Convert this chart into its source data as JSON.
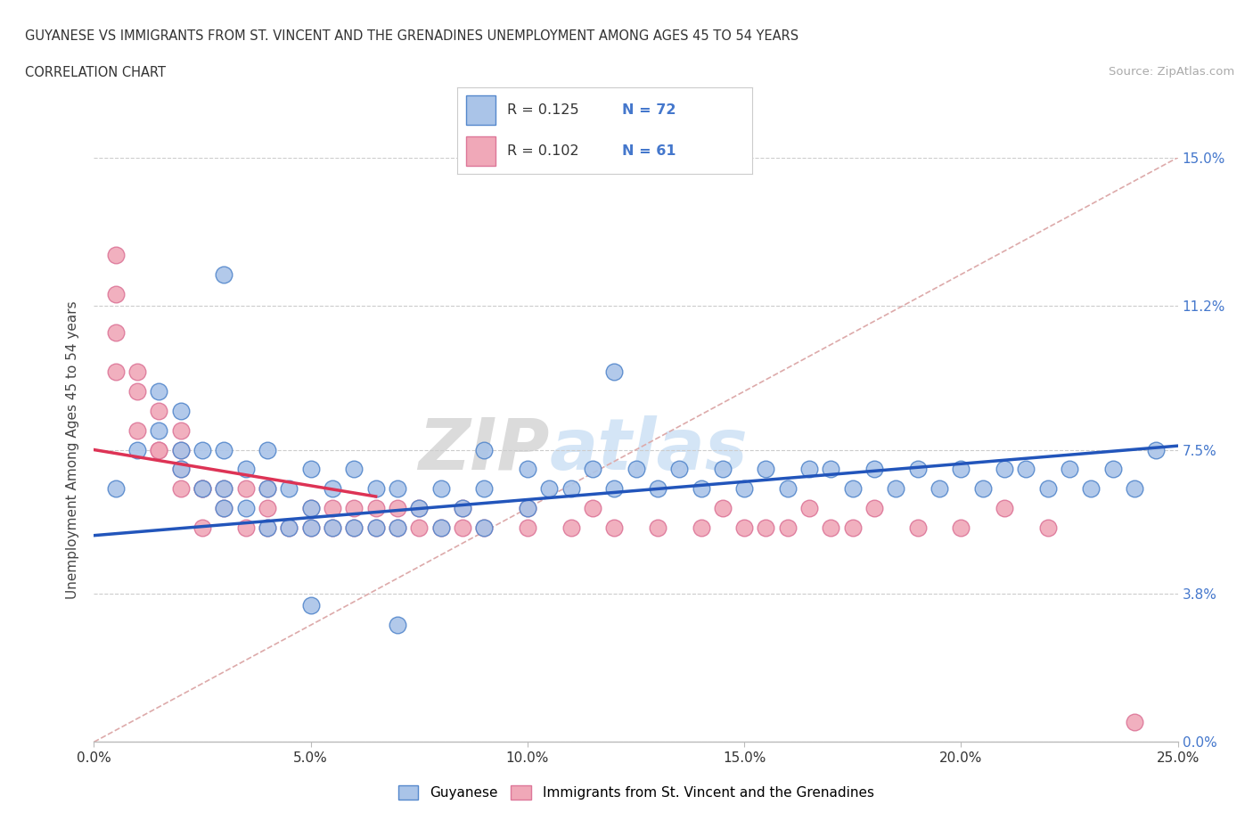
{
  "title_line1": "GUYANESE VS IMMIGRANTS FROM ST. VINCENT AND THE GRENADINES UNEMPLOYMENT AMONG AGES 45 TO 54 YEARS",
  "title_line2": "CORRELATION CHART",
  "source_text": "Source: ZipAtlas.com",
  "ylabel": "Unemployment Among Ages 45 to 54 years",
  "xlim": [
    0.0,
    0.25
  ],
  "ylim": [
    0.0,
    0.15
  ],
  "yticks": [
    0.0,
    0.038,
    0.075,
    0.112,
    0.15
  ],
  "ytick_labels": [
    "0.0%",
    "3.8%",
    "7.5%",
    "11.2%",
    "15.0%"
  ],
  "xticks": [
    0.0,
    0.05,
    0.1,
    0.15,
    0.2,
    0.25
  ],
  "xtick_labels": [
    "0.0%",
    "5.0%",
    "10.0%",
    "15.0%",
    "20.0%",
    "25.0%"
  ],
  "blue_color": "#aac4e8",
  "pink_color": "#f0a8b8",
  "blue_edge": "#5588cc",
  "pink_edge": "#dd7799",
  "trend_blue": "#2255bb",
  "trend_pink": "#dd3355",
  "diag_color": "#ddaaaa",
  "R_blue": 0.125,
  "N_blue": 72,
  "R_pink": 0.102,
  "N_pink": 61,
  "legend_label_blue": "Guyanese",
  "legend_label_pink": "Immigrants from St. Vincent and the Grenadines",
  "watermark_zip": "ZIP",
  "watermark_atlas": "atlas",
  "background_color": "#ffffff",
  "grid_color": "#cccccc",
  "ytick_color": "#4477cc",
  "blue_x": [
    0.005,
    0.01,
    0.015,
    0.015,
    0.02,
    0.02,
    0.02,
    0.025,
    0.025,
    0.03,
    0.03,
    0.03,
    0.035,
    0.035,
    0.04,
    0.04,
    0.04,
    0.045,
    0.045,
    0.05,
    0.05,
    0.05,
    0.055,
    0.055,
    0.06,
    0.06,
    0.065,
    0.065,
    0.07,
    0.07,
    0.075,
    0.08,
    0.08,
    0.085,
    0.09,
    0.09,
    0.09,
    0.1,
    0.1,
    0.105,
    0.11,
    0.115,
    0.12,
    0.125,
    0.13,
    0.135,
    0.14,
    0.145,
    0.15,
    0.155,
    0.16,
    0.165,
    0.17,
    0.175,
    0.18,
    0.185,
    0.19,
    0.195,
    0.2,
    0.205,
    0.21,
    0.215,
    0.22,
    0.225,
    0.23,
    0.235,
    0.24,
    0.245,
    0.03,
    0.05,
    0.07,
    0.12
  ],
  "blue_y": [
    0.065,
    0.075,
    0.08,
    0.09,
    0.07,
    0.075,
    0.085,
    0.065,
    0.075,
    0.06,
    0.065,
    0.075,
    0.06,
    0.07,
    0.055,
    0.065,
    0.075,
    0.055,
    0.065,
    0.055,
    0.06,
    0.07,
    0.055,
    0.065,
    0.055,
    0.07,
    0.055,
    0.065,
    0.055,
    0.065,
    0.06,
    0.055,
    0.065,
    0.06,
    0.055,
    0.065,
    0.075,
    0.06,
    0.07,
    0.065,
    0.065,
    0.07,
    0.065,
    0.07,
    0.065,
    0.07,
    0.065,
    0.07,
    0.065,
    0.07,
    0.065,
    0.07,
    0.07,
    0.065,
    0.07,
    0.065,
    0.07,
    0.065,
    0.07,
    0.065,
    0.07,
    0.07,
    0.065,
    0.07,
    0.065,
    0.07,
    0.065,
    0.075,
    0.12,
    0.035,
    0.03,
    0.095
  ],
  "pink_x": [
    0.005,
    0.005,
    0.005,
    0.005,
    0.01,
    0.01,
    0.01,
    0.015,
    0.015,
    0.015,
    0.02,
    0.02,
    0.02,
    0.02,
    0.025,
    0.025,
    0.025,
    0.03,
    0.03,
    0.035,
    0.035,
    0.04,
    0.04,
    0.04,
    0.045,
    0.05,
    0.05,
    0.055,
    0.055,
    0.06,
    0.06,
    0.065,
    0.065,
    0.07,
    0.07,
    0.075,
    0.075,
    0.08,
    0.085,
    0.085,
    0.09,
    0.1,
    0.1,
    0.11,
    0.115,
    0.12,
    0.13,
    0.14,
    0.145,
    0.15,
    0.155,
    0.16,
    0.165,
    0.17,
    0.175,
    0.18,
    0.19,
    0.2,
    0.21,
    0.22,
    0.24
  ],
  "pink_y": [
    0.125,
    0.115,
    0.105,
    0.095,
    0.09,
    0.08,
    0.095,
    0.075,
    0.085,
    0.075,
    0.07,
    0.08,
    0.065,
    0.075,
    0.065,
    0.055,
    0.065,
    0.06,
    0.065,
    0.055,
    0.065,
    0.055,
    0.06,
    0.065,
    0.055,
    0.055,
    0.06,
    0.055,
    0.06,
    0.055,
    0.06,
    0.055,
    0.06,
    0.055,
    0.06,
    0.055,
    0.06,
    0.055,
    0.055,
    0.06,
    0.055,
    0.055,
    0.06,
    0.055,
    0.06,
    0.055,
    0.055,
    0.055,
    0.06,
    0.055,
    0.055,
    0.055,
    0.06,
    0.055,
    0.055,
    0.06,
    0.055,
    0.055,
    0.06,
    0.055,
    0.005
  ],
  "blue_trend_x": [
    0.0,
    0.25
  ],
  "blue_trend_y": [
    0.053,
    0.076
  ],
  "pink_trend_x": [
    0.0,
    0.065
  ],
  "pink_trend_y": [
    0.075,
    0.063
  ]
}
